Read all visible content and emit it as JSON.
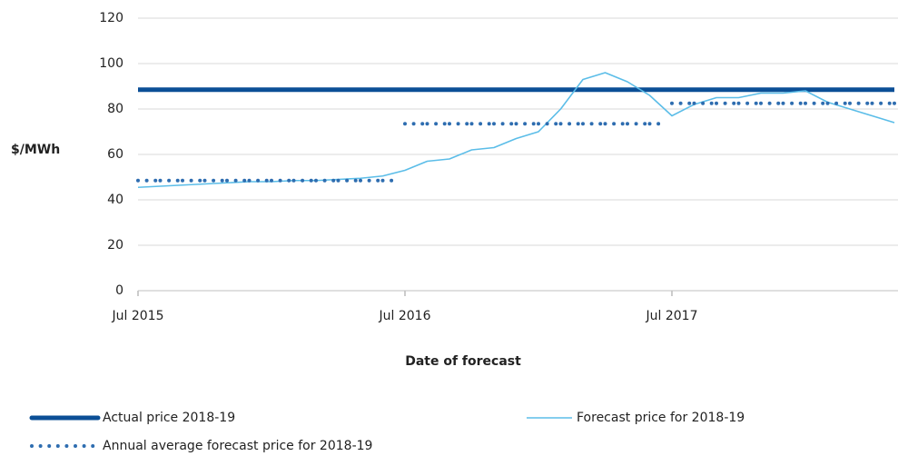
{
  "chart_data": {
    "type": "line",
    "y_label": "$/MWh",
    "x_label": "Date of forecast",
    "x": [
      "2015-07",
      "2015-08",
      "2015-09",
      "2015-10",
      "2015-11",
      "2015-12",
      "2016-01",
      "2016-02",
      "2016-03",
      "2016-04",
      "2016-05",
      "2016-06",
      "2016-07",
      "2016-08",
      "2016-09",
      "2016-10",
      "2016-11",
      "2016-12",
      "2017-01",
      "2017-02",
      "2017-03",
      "2017-04",
      "2017-05",
      "2017-06",
      "2017-07",
      "2017-08",
      "2017-09",
      "2017-10",
      "2017-11",
      "2017-12",
      "2018-01",
      "2018-02",
      "2018-03",
      "2018-04",
      "2018-05"
    ],
    "series": [
      {
        "name": "Actual price 2018-19",
        "color": "#0b4f96",
        "style": "solid",
        "values": [
          88.5,
          88.5,
          88.5,
          88.5,
          88.5,
          88.5,
          88.5,
          88.5,
          88.5,
          88.5,
          88.5,
          88.5,
          88.5,
          88.5,
          88.5,
          88.5,
          88.5,
          88.5,
          88.5,
          88.5,
          88.5,
          88.5,
          88.5,
          88.5,
          88.5,
          88.5,
          88.5,
          88.5,
          88.5,
          88.5,
          88.5,
          88.5,
          88.5,
          88.5,
          88.5
        ]
      },
      {
        "name": "Forecast price for 2018-19",
        "color": "#5bbde8",
        "style": "thin",
        "values": [
          45.5,
          46,
          46.5,
          47,
          47.5,
          48,
          48,
          48.5,
          48.5,
          49,
          49.5,
          50.5,
          53,
          57,
          58,
          62,
          63,
          67,
          70,
          80,
          93,
          96,
          92,
          86,
          77,
          82,
          85,
          85,
          87,
          87,
          88,
          83,
          80,
          77,
          74
        ]
      },
      {
        "name": "Annual average forecast price for 2018-19",
        "color": "#2e6db0",
        "style": "dotted",
        "values": [
          48.5,
          48.5,
          48.5,
          48.5,
          48.5,
          48.5,
          48.5,
          48.5,
          48.5,
          48.5,
          48.5,
          48.5,
          73.5,
          73.5,
          73.5,
          73.5,
          73.5,
          73.5,
          73.5,
          73.5,
          73.5,
          73.5,
          73.5,
          73.5,
          82.5,
          82.5,
          82.5,
          82.5,
          82.5,
          82.5,
          82.5,
          82.5,
          82.5,
          82.5,
          82.5
        ]
      }
    ],
    "xlim": [
      "2015-07",
      "2018-05"
    ],
    "xticks": [
      {
        "value": "2015-07",
        "label": "Jul 2015"
      },
      {
        "value": "2016-07",
        "label": "Jul 2016"
      },
      {
        "value": "2017-07",
        "label": "Jul 2017"
      }
    ],
    "ylim": [
      0,
      120
    ],
    "yticks": [
      0,
      20,
      40,
      60,
      80,
      100,
      120
    ],
    "grid": true,
    "legend": "bottom"
  }
}
